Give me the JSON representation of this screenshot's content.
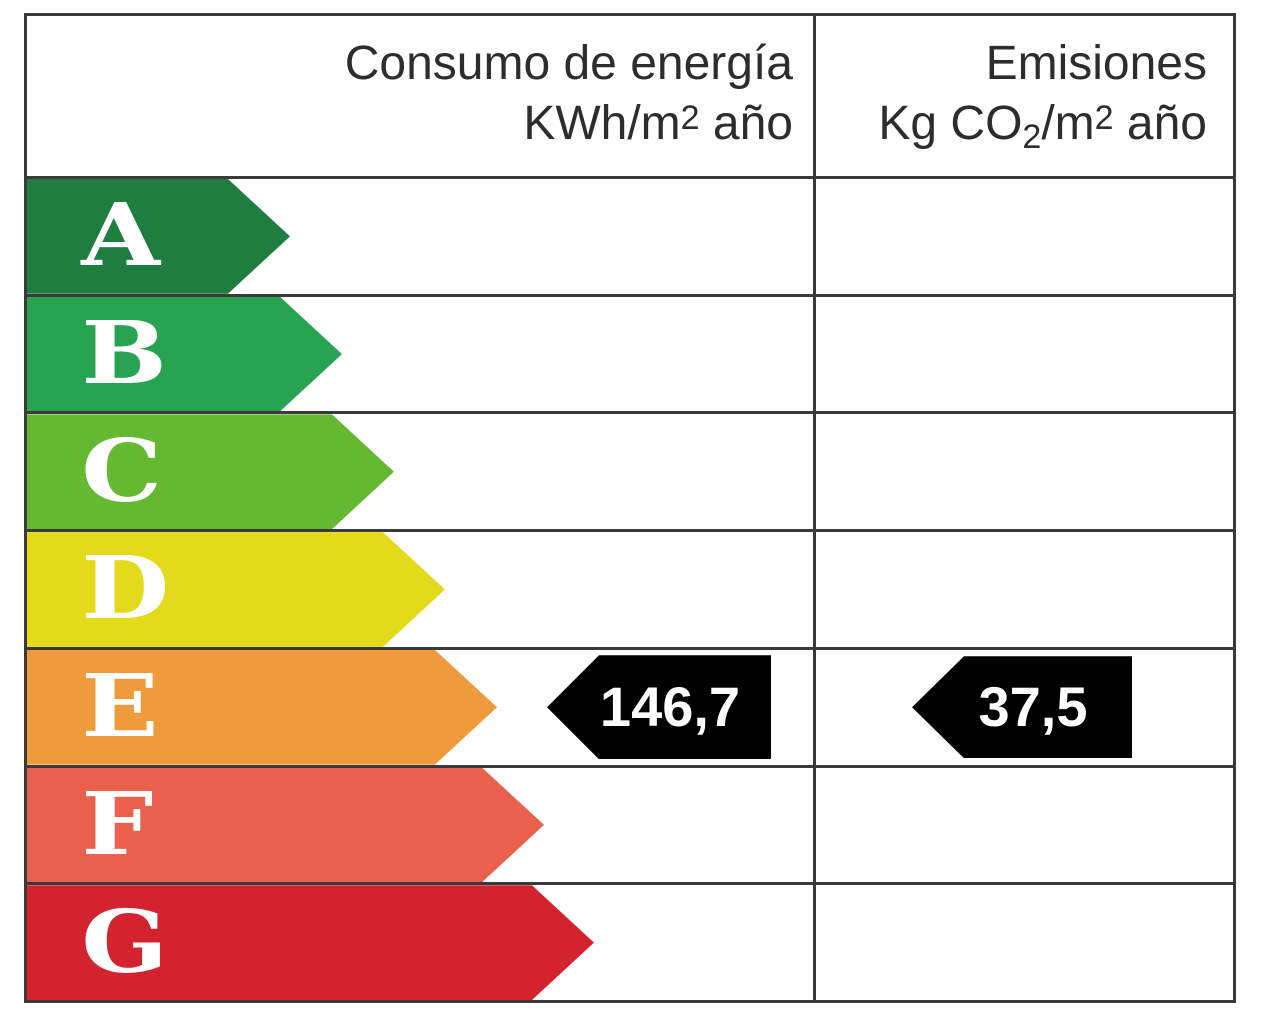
{
  "label": {
    "border_color": "#3a3a3a",
    "background": "#ffffff",
    "text_color": "#2d2d2d"
  },
  "header": {
    "consumption_title": "Consumo de energía",
    "consumption_units": {
      "prefix": "KWh/m",
      "sup": "2",
      "suffix": " año"
    },
    "emissions_title": "Emisiones",
    "emissions_units": {
      "prefix": "Kg CO",
      "sub": "2",
      "mid": "/m",
      "sup": "2",
      "suffix": " año"
    }
  },
  "bands": [
    {
      "letter": "A",
      "color": "#1f7d40"
    },
    {
      "letter": "B",
      "color": "#27a351"
    },
    {
      "letter": "C",
      "color": "#64b832"
    },
    {
      "letter": "D",
      "color": "#e4da1c"
    },
    {
      "letter": "E",
      "color": "#ef9a3d"
    },
    {
      "letter": "F",
      "color": "#e9614d"
    },
    {
      "letter": "G",
      "color": "#d2232f"
    }
  ],
  "markers": {
    "consumption": {
      "value": "146,7",
      "bg": "#000000",
      "text_color": "#ffffff"
    },
    "emissions": {
      "value": "37,5",
      "bg": "#000000",
      "text_color": "#ffffff"
    }
  },
  "chart_data": {
    "type": "table",
    "title": "",
    "columns": [
      "Consumo de energía KWh/m2 año",
      "Emisiones Kg CO2/m2 año"
    ],
    "rating_scale": [
      "A",
      "B",
      "C",
      "D",
      "E",
      "F",
      "G"
    ],
    "rating_colors": [
      "#1f7d40",
      "#27a351",
      "#64b832",
      "#e4da1c",
      "#ef9a3d",
      "#e9614d",
      "#d2232f"
    ],
    "indicated_rating": "E",
    "values": {
      "consumo_energia_kwh_m2_ano": 146.7,
      "emisiones_kg_co2_m2_ano": 37.5
    },
    "layout": "horizontal arrow bands A (best) to G (worst); black value arrows on row E"
  }
}
